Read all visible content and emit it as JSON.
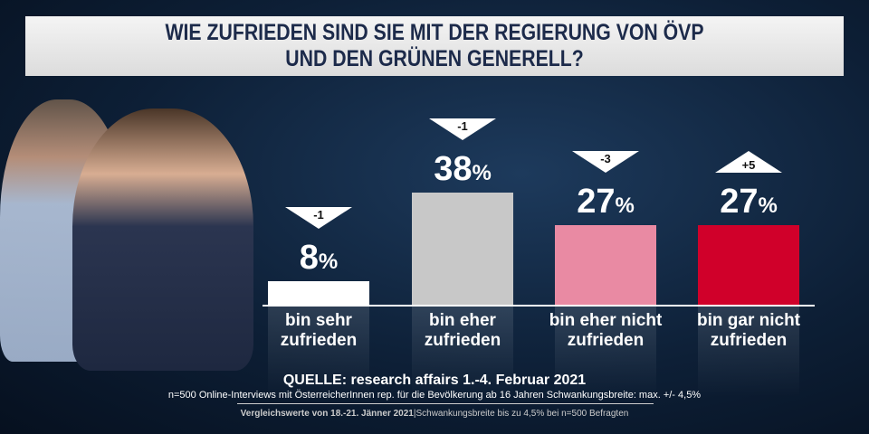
{
  "chart_data": {
    "type": "bar",
    "title": "WIE ZUFRIEDEN SIND SIE MIT DER REGIERUNG VON ÖVP UND DEN GRÜNEN GENERELL?",
    "title_lines": [
      "WIE ZUFRIEDEN SIND SIE MIT DER REGIERUNG VON ÖVP",
      "UND DEN GRÜNEN GENERELL?"
    ],
    "categories": [
      [
        "bin sehr",
        "zufrieden"
      ],
      [
        "bin eher",
        "zufrieden"
      ],
      [
        "bin eher nicht",
        "zufrieden"
      ],
      [
        "bin gar nicht",
        "zufrieden"
      ]
    ],
    "values": [
      8,
      38,
      27,
      27
    ],
    "value_labels": [
      "8",
      "38",
      "27",
      "27"
    ],
    "unit": "%",
    "changes": [
      "-1",
      "-1",
      "-3",
      "+5"
    ],
    "change_direction": [
      "down",
      "down",
      "down",
      "up"
    ],
    "colors": [
      "#ffffff",
      "#c8c8c8",
      "#e98aa3",
      "#d0002a"
    ],
    "ylim": [
      0,
      40
    ]
  },
  "source": {
    "main": "QUELLE: research affairs 1.-4. Februar 2021",
    "details": "n=500 Online-Interviews mit ÖsterreicherInnen rep. für die Bevölkerung ab 16 Jahren  Schwankungsbreite: max. +/- 4,5%",
    "compare_bold": "Vergleichswerte von 18.-21. Jänner 2021",
    "compare_rest": "|Schwankungsbreite bis zu 4,5% bei n=500 Befragten"
  }
}
